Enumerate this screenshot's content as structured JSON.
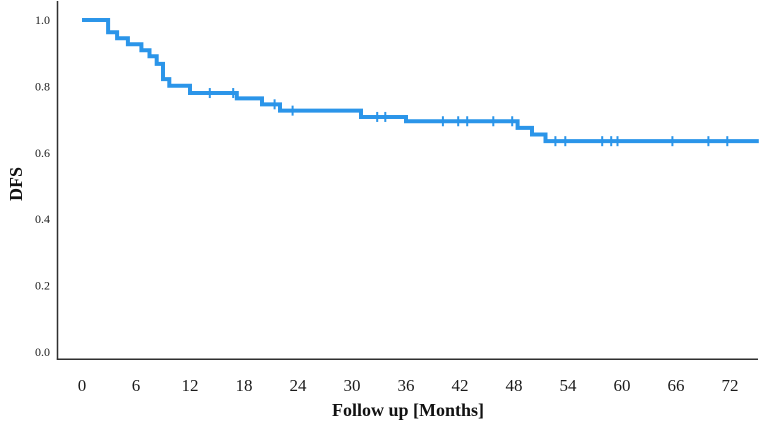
{
  "figure": {
    "background": "#ffffff"
  },
  "chart_data": {
    "type": "line",
    "chart_kind": "kaplan_meier_step_curve",
    "title": "",
    "xlabel": "Follow up [Months]",
    "ylabel": "DFS",
    "grid": false,
    "legend": false,
    "line_color": "#2B95E9",
    "axis_color": "#2f2f2f",
    "x_axis": {
      "min": 0,
      "max": 72,
      "ticks": [
        {
          "v": 0,
          "label": "0"
        },
        {
          "v": 6,
          "label": "6"
        },
        {
          "v": 12,
          "label": "12"
        },
        {
          "v": 18,
          "label": "18"
        },
        {
          "v": 24,
          "label": "24"
        },
        {
          "v": 30,
          "label": "30"
        },
        {
          "v": 36,
          "label": "36"
        },
        {
          "v": 42,
          "label": "42"
        },
        {
          "v": 48,
          "label": "48"
        },
        {
          "v": 54,
          "label": "54"
        },
        {
          "v": 60,
          "label": "60"
        },
        {
          "v": 66,
          "label": "66"
        },
        {
          "v": 72,
          "label": "72"
        }
      ]
    },
    "y_axis": {
      "min": 0.0,
      "max": 1.0,
      "ticks": [
        {
          "v": 0.0,
          "label": "0.0"
        },
        {
          "v": 0.2,
          "label": "0.2"
        },
        {
          "v": 0.4,
          "label": "0.4"
        },
        {
          "v": 0.6,
          "label": "0.6"
        },
        {
          "v": 0.8,
          "label": "0.8"
        },
        {
          "v": 1.0,
          "label": "1.0"
        }
      ]
    },
    "series": [
      {
        "name": "DFS",
        "style": "step",
        "steps": [
          [
            0.0,
            1.0
          ],
          [
            2.9,
            0.963
          ],
          [
            3.9,
            0.945
          ],
          [
            5.1,
            0.927
          ],
          [
            6.6,
            0.909
          ],
          [
            7.5,
            0.891
          ],
          [
            8.3,
            0.868
          ],
          [
            9.0,
            0.822
          ],
          [
            9.7,
            0.802
          ],
          [
            12.0,
            0.78
          ],
          [
            17.2,
            0.764
          ],
          [
            20.0,
            0.746
          ],
          [
            22.0,
            0.727
          ],
          [
            31.0,
            0.708
          ],
          [
            36.0,
            0.695
          ],
          [
            48.4,
            0.675
          ],
          [
            50.0,
            0.655
          ],
          [
            51.5,
            0.635
          ]
        ],
        "end_time": 75.2,
        "censor_marks": [
          [
            14.2,
            0.78
          ],
          [
            16.8,
            0.78
          ],
          [
            21.4,
            0.746
          ],
          [
            23.4,
            0.727
          ],
          [
            32.8,
            0.708
          ],
          [
            33.7,
            0.708
          ],
          [
            40.1,
            0.695
          ],
          [
            41.8,
            0.695
          ],
          [
            42.8,
            0.695
          ],
          [
            45.7,
            0.695
          ],
          [
            47.8,
            0.695
          ],
          [
            52.6,
            0.635
          ],
          [
            53.7,
            0.635
          ],
          [
            57.8,
            0.635
          ],
          [
            58.8,
            0.635
          ],
          [
            59.5,
            0.635
          ],
          [
            65.6,
            0.635
          ],
          [
            69.6,
            0.635
          ],
          [
            71.7,
            0.635
          ]
        ]
      }
    ]
  }
}
